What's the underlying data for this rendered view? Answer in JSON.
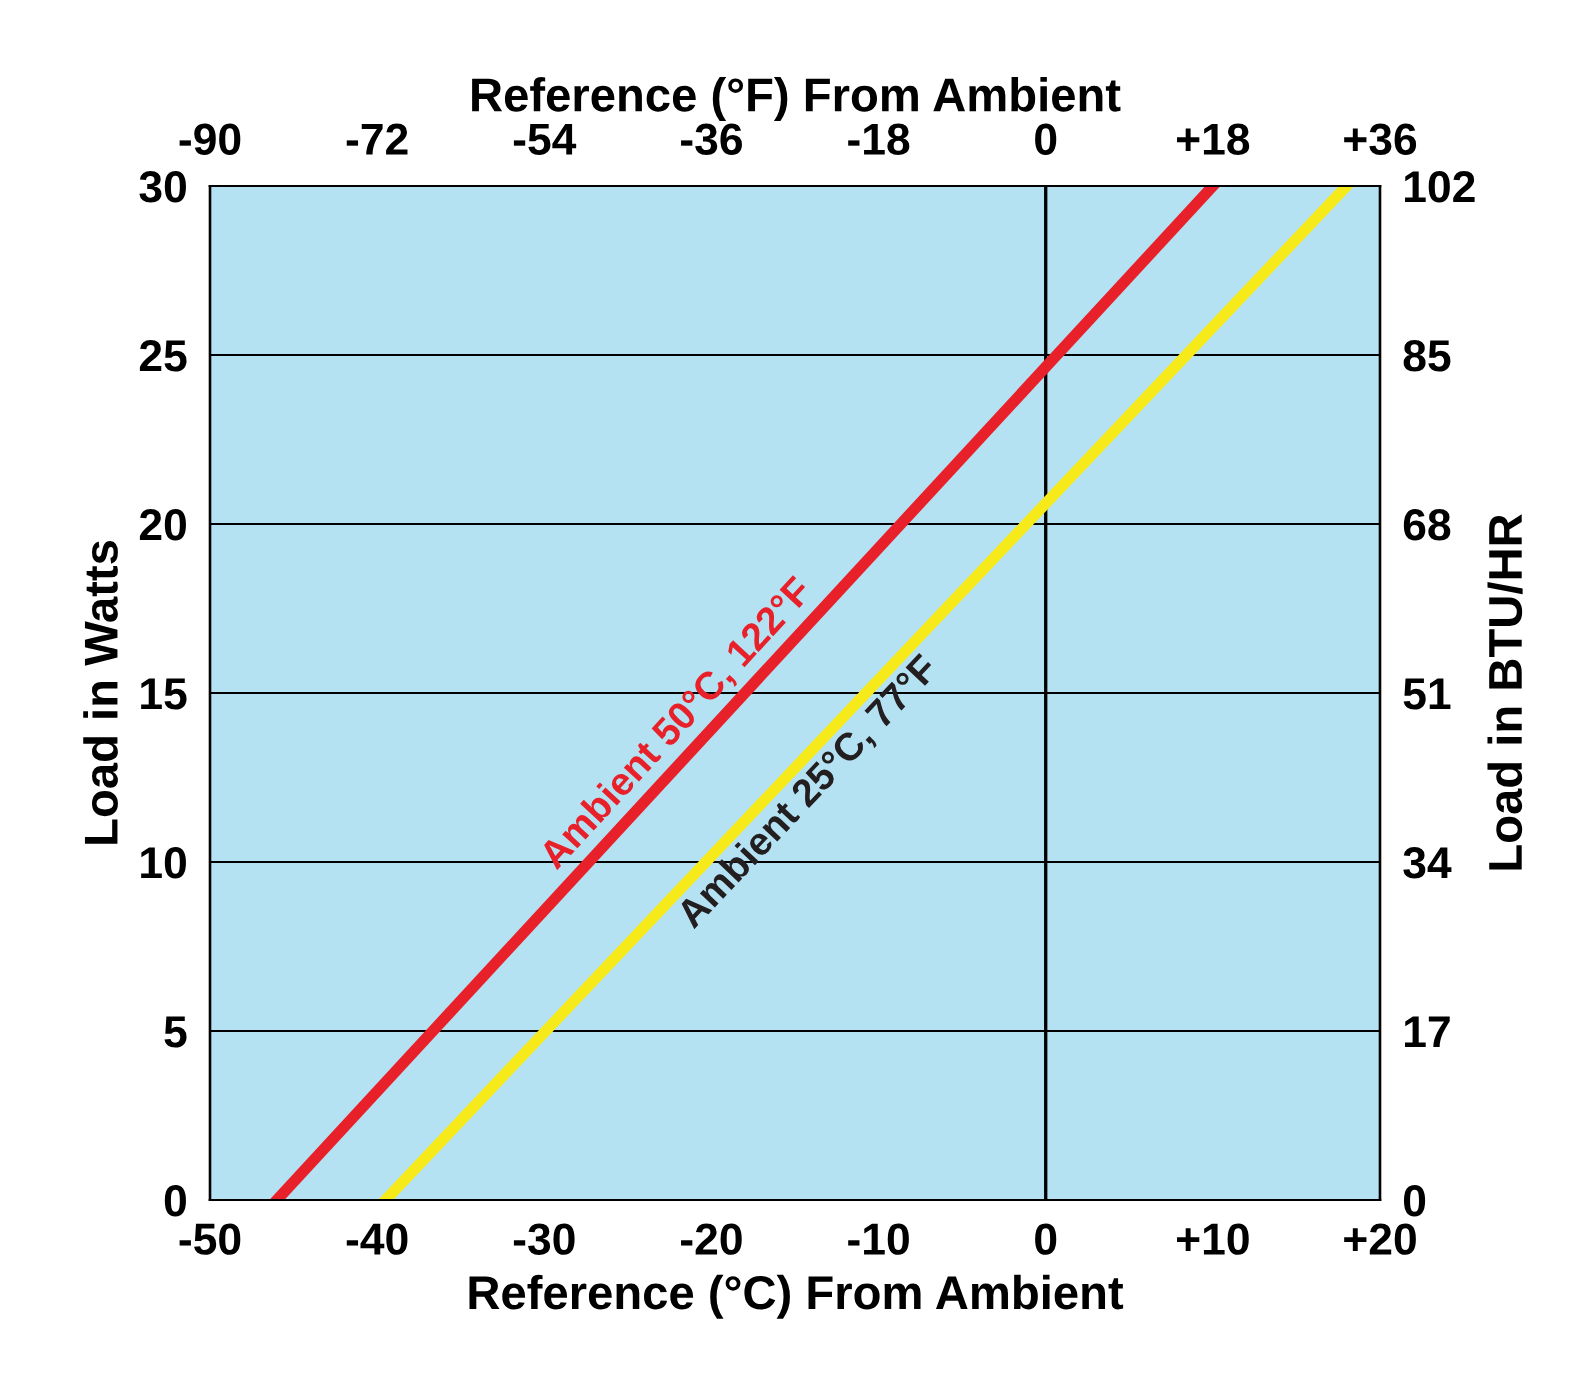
{
  "chart_data": {
    "type": "line",
    "xlabel": "Reference (°C) From Ambient",
    "x2label": "Reference (°F) From Ambient",
    "ylabel": "Load in Watts",
    "y2label": "Load in BTU/HR",
    "series": [
      {
        "name": "Ambient 50°C, 122°F",
        "color": "#e8202a",
        "x": [
          -46,
          10
        ],
        "values": [
          0,
          30
        ]
      },
      {
        "name": "Ambient 25°C, 77°F",
        "color": "#f7ea1a",
        "x": [
          -39.5,
          18
        ],
        "values": [
          0,
          30
        ]
      }
    ],
    "xlim": [
      -50,
      20
    ],
    "xticks": [
      -50,
      -40,
      -30,
      -20,
      -10,
      0,
      {
        "value": 10,
        "label": "+10"
      },
      {
        "value": 20,
        "label": "+20"
      }
    ],
    "x2lim": [
      -90,
      36
    ],
    "x2ticks": [
      -90,
      -72,
      -54,
      -36,
      -18,
      0,
      {
        "value": 18,
        "label": "+18"
      },
      {
        "value": 36,
        "label": "+36"
      }
    ],
    "ylim": [
      0,
      30
    ],
    "yticks": [
      0,
      5,
      10,
      15,
      20,
      25,
      30
    ],
    "y2lim": [
      0,
      102
    ],
    "y2ticks": [
      0,
      17,
      34,
      51,
      68,
      85,
      102
    ],
    "ref_lines": [
      {
        "axis": "x",
        "value": 0,
        "color": "#000000"
      }
    ],
    "grid": "y",
    "legend": false,
    "marker": "none",
    "line_style": "solid"
  }
}
